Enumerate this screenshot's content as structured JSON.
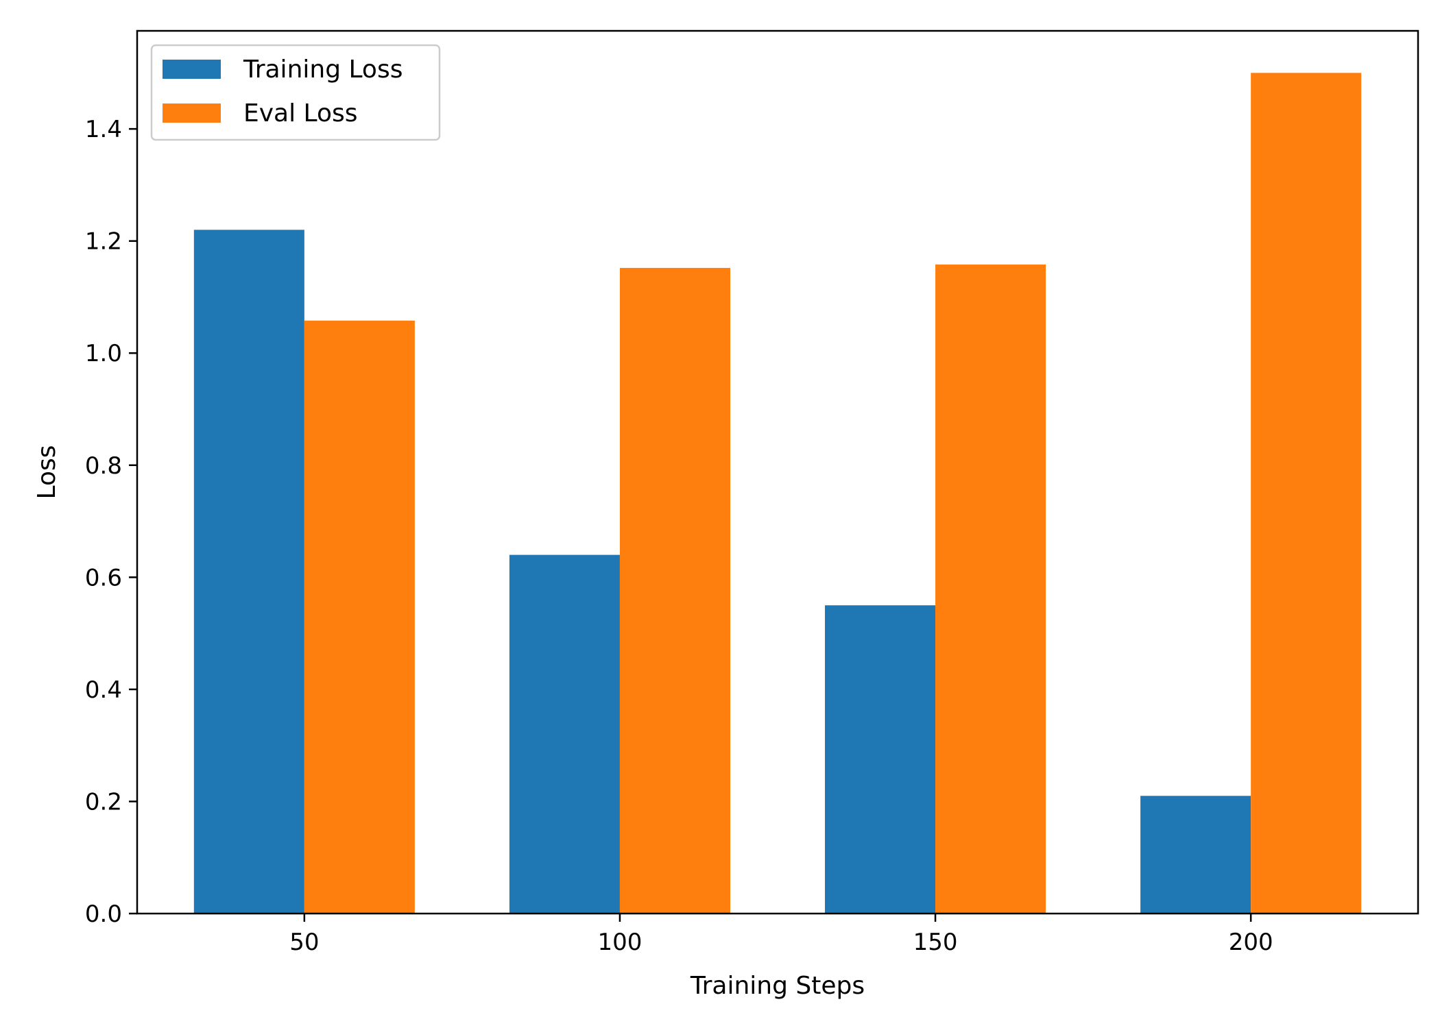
{
  "chart_data": {
    "type": "bar",
    "categories": [
      "50",
      "100",
      "150",
      "200"
    ],
    "series": [
      {
        "name": "Training Loss",
        "values": [
          1.22,
          0.64,
          0.55,
          0.21
        ],
        "color": "#1f77b4"
      },
      {
        "name": "Eval Loss",
        "values": [
          1.058,
          1.152,
          1.158,
          1.5
        ],
        "color": "#ff7f0e"
      }
    ],
    "title": "",
    "xlabel": "Training Steps",
    "ylabel": "Loss",
    "ylim": [
      0,
      1.575
    ],
    "yticks": [
      "0.0",
      "0.2",
      "0.4",
      "0.6",
      "0.8",
      "1.0",
      "1.2",
      "1.4"
    ],
    "grid": false,
    "legend": "top-left"
  }
}
